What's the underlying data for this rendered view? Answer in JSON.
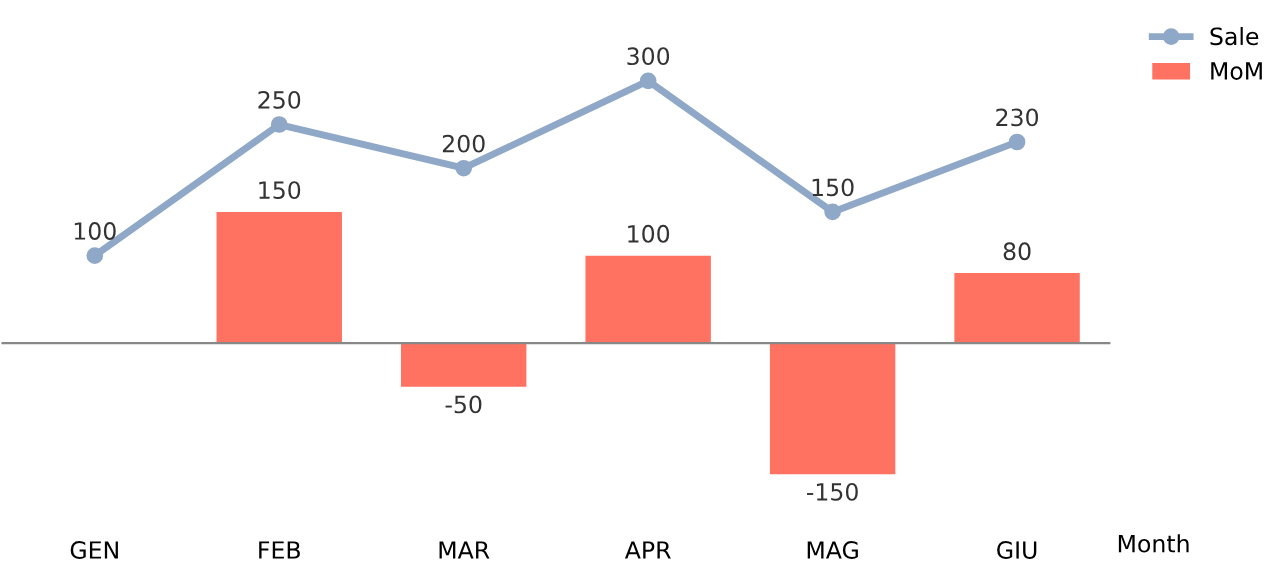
{
  "chart_data": {
    "type": "bar",
    "xlabel": "Month",
    "categories": [
      "GEN",
      "FEB",
      "MAR",
      "APR",
      "MAG",
      "GIU"
    ],
    "series": [
      {
        "name": "Sale",
        "type": "line",
        "color": "#8fa8c8",
        "values": [
          100,
          250,
          200,
          300,
          150,
          230
        ]
      },
      {
        "name": "MoM",
        "color": "#ff7262",
        "values": [
          null,
          150,
          -50,
          100,
          -150,
          80
        ]
      }
    ],
    "tick_labels": "x",
    "data_labels": true,
    "marker": "circle",
    "legend": "top right",
    "grid": false
  }
}
